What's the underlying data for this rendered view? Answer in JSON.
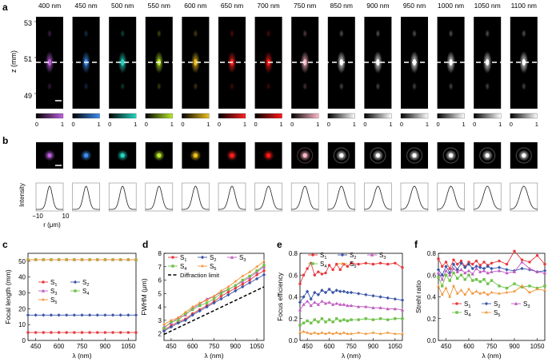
{
  "figure": {
    "panel_letters": [
      "a",
      "b",
      "c",
      "d",
      "e",
      "f"
    ],
    "wavelength_labels": [
      "400 nm",
      "450 nm",
      "500 nm",
      "550 nm",
      "600 nm",
      "650 nm",
      "700 nm",
      "750 nm",
      "850 nm",
      "900 nm",
      "950 nm",
      "1000 nm",
      "1050 nm",
      "1100 nm"
    ],
    "channel_colors": [
      "#c060e0",
      "#3d8ef0",
      "#25d6c2",
      "#b7ea2c",
      "#eec020",
      "#ff2020",
      "#ff1818",
      "#ffb8c8",
      "#ffffff",
      "#ffffff",
      "#ffffff",
      "#ffffff",
      "#ffffff",
      "#ffffff"
    ],
    "panel_a": {
      "z_axis_label": "z (mm)",
      "z_ticks": [
        "53",
        "51",
        "49"
      ],
      "colorbar_tick_min": "0",
      "colorbar_tick_max": "1"
    },
    "panel_b": {
      "intensity_label": "Intensity",
      "r_axis_label": "r (μm)",
      "r_ticks": [
        "−10",
        "10"
      ]
    }
  },
  "chart_data": [
    {
      "panel": "c",
      "type": "line",
      "title": "",
      "xlabel": "λ (nm)",
      "ylabel": "Focal length (mm)",
      "xlim": [
        400,
        1100
      ],
      "ylim": [
        0,
        55
      ],
      "x_ticks": [
        450,
        600,
        750,
        900,
        1050
      ],
      "y_ticks": [
        0,
        10,
        20,
        30,
        40,
        50
      ],
      "x": [
        400,
        450,
        500,
        550,
        600,
        650,
        700,
        750,
        800,
        850,
        900,
        950,
        1000,
        1050,
        1100
      ],
      "legend": {
        "location": "center-left",
        "columns": 2
      },
      "series": [
        {
          "name": "S1",
          "sub": "1",
          "color": "#e8383c",
          "values": [
            5,
            5,
            5,
            5,
            5,
            5,
            5,
            5,
            5,
            5,
            5,
            5,
            5,
            5,
            5
          ]
        },
        {
          "name": "S2",
          "sub": "2",
          "color": "#3b56a8",
          "values": [
            16,
            16,
            16,
            16,
            16,
            16,
            16,
            16,
            16,
            16,
            16,
            16,
            16,
            16,
            16
          ]
        },
        {
          "name": "S3",
          "sub": "3",
          "color": "#c05cc0",
          "values": [
            51,
            51,
            51,
            51,
            51,
            51,
            51,
            51,
            51,
            51,
            51,
            51,
            51,
            51,
            51
          ]
        },
        {
          "name": "S4",
          "sub": "4",
          "color": "#6fc24a",
          "values": [
            51,
            51,
            51,
            51,
            51,
            51,
            51,
            51,
            51,
            51,
            51,
            51,
            51,
            51,
            51
          ]
        },
        {
          "name": "S5",
          "sub": "5",
          "color": "#f0902e",
          "values": [
            51,
            51,
            51,
            51,
            51,
            51,
            51,
            51,
            51,
            51,
            51,
            51,
            51,
            51,
            51
          ]
        }
      ]
    },
    {
      "panel": "d",
      "type": "line",
      "title": "",
      "xlabel": "λ (nm)",
      "ylabel": "FWHM (μm)",
      "xlim": [
        400,
        1100
      ],
      "ylim": [
        1.5,
        8
      ],
      "x_ticks": [
        450,
        600,
        750,
        900,
        1050
      ],
      "y_ticks": [
        2,
        3,
        4,
        5,
        6,
        7,
        8
      ],
      "x": [
        400,
        450,
        500,
        550,
        600,
        650,
        700,
        750,
        800,
        850,
        900,
        950,
        1000,
        1050,
        1100
      ],
      "legend": {
        "location": "top-left",
        "columns": 3
      },
      "series": [
        {
          "name": "S1",
          "sub": "1",
          "color": "#e8383c",
          "values": [
            2.3,
            2.6,
            2.9,
            3.1,
            3.5,
            3.8,
            4.1,
            4.4,
            4.8,
            5.1,
            5.4,
            5.7,
            6.0,
            6.4,
            6.7
          ]
        },
        {
          "name": "S2",
          "sub": "2",
          "color": "#3b56a8",
          "values": [
            2.2,
            2.5,
            2.8,
            3.0,
            3.4,
            3.7,
            4.0,
            4.3,
            4.6,
            4.9,
            5.2,
            5.5,
            5.8,
            6.1,
            6.4
          ]
        },
        {
          "name": "S3",
          "sub": "3",
          "color": "#c05cc0",
          "values": [
            2.5,
            2.8,
            3.2,
            3.4,
            3.9,
            4.2,
            4.6,
            4.8,
            5.1,
            5.3,
            5.6,
            5.9,
            6.2,
            6.6,
            7.0
          ]
        },
        {
          "name": "S4",
          "sub": "4",
          "color": "#6fc24a",
          "values": [
            2.4,
            2.9,
            3.0,
            3.5,
            3.8,
            4.1,
            4.3,
            4.6,
            5.0,
            5.3,
            5.6,
            6.0,
            6.3,
            6.7,
            7.1
          ]
        },
        {
          "name": "S5",
          "sub": "5",
          "color": "#f0902e",
          "values": [
            2.7,
            3.0,
            3.2,
            3.6,
            4.0,
            4.3,
            4.5,
            4.8,
            5.2,
            5.5,
            5.9,
            6.3,
            6.6,
            7.0,
            7.4
          ]
        }
      ],
      "reference_line": {
        "name": "Diffraction limit",
        "x": [
          400,
          1100
        ],
        "values": [
          1.95,
          5.5
        ]
      }
    },
    {
      "panel": "e",
      "type": "line",
      "title": "",
      "xlabel": "λ (nm)",
      "ylabel": "Focus efficiency",
      "xlim": [
        400,
        1100
      ],
      "ylim": [
        0,
        0.8
      ],
      "x_ticks": [
        450,
        600,
        750,
        900,
        1050
      ],
      "y_ticks": [
        0.0,
        0.2,
        0.4,
        0.6,
        0.8
      ],
      "x": [
        400,
        425,
        450,
        475,
        500,
        525,
        550,
        575,
        600,
        625,
        650,
        675,
        700,
        725,
        750,
        800,
        850,
        900,
        950,
        1000,
        1050,
        1100
      ],
      "legend": {
        "location": "top",
        "columns": 3
      },
      "series": [
        {
          "name": "S1",
          "sub": "1",
          "color": "#e8383c",
          "values": [
            0.52,
            0.6,
            0.66,
            0.71,
            0.6,
            0.63,
            0.61,
            0.62,
            0.69,
            0.65,
            0.7,
            0.65,
            0.7,
            0.68,
            0.71,
            0.7,
            0.71,
            0.7,
            0.71,
            0.7,
            0.71,
            0.67
          ]
        },
        {
          "name": "S2",
          "sub": "2",
          "color": "#3b56a8",
          "values": [
            0.35,
            0.4,
            0.45,
            0.38,
            0.44,
            0.42,
            0.46,
            0.44,
            0.47,
            0.44,
            0.46,
            0.45,
            0.45,
            0.44,
            0.44,
            0.43,
            0.42,
            0.41,
            0.4,
            0.39,
            0.38,
            0.37
          ]
        },
        {
          "name": "S3",
          "sub": "3",
          "color": "#c05cc0",
          "values": [
            0.28,
            0.33,
            0.36,
            0.32,
            0.35,
            0.33,
            0.36,
            0.34,
            0.35,
            0.33,
            0.34,
            0.33,
            0.33,
            0.32,
            0.32,
            0.31,
            0.31,
            0.3,
            0.3,
            0.29,
            0.29,
            0.28
          ]
        },
        {
          "name": "S4",
          "sub": "4",
          "color": "#6fc24a",
          "values": [
            0.14,
            0.16,
            0.18,
            0.16,
            0.19,
            0.17,
            0.2,
            0.17,
            0.19,
            0.17,
            0.2,
            0.18,
            0.19,
            0.18,
            0.19,
            0.19,
            0.2,
            0.19,
            0.2,
            0.19,
            0.2,
            0.2
          ]
        },
        {
          "name": "S5",
          "sub": "5",
          "color": "#f0902e",
          "values": [
            0.07,
            0.08,
            0.07,
            0.06,
            0.07,
            0.06,
            0.07,
            0.06,
            0.07,
            0.06,
            0.07,
            0.06,
            0.07,
            0.06,
            0.06,
            0.07,
            0.06,
            0.07,
            0.06,
            0.07,
            0.06,
            0.06
          ]
        }
      ]
    },
    {
      "panel": "f",
      "type": "line",
      "title": "",
      "xlabel": "λ (nm)",
      "ylabel": "Strehl ratio",
      "xlim": [
        400,
        1100
      ],
      "ylim": [
        0,
        0.8
      ],
      "x_ticks": [
        450,
        600,
        750,
        900,
        1050
      ],
      "y_ticks": [
        0.0,
        0.2,
        0.4,
        0.6,
        0.8
      ],
      "x": [
        400,
        425,
        450,
        475,
        500,
        525,
        550,
        575,
        600,
        625,
        650,
        675,
        700,
        725,
        750,
        800,
        850,
        900,
        950,
        1000,
        1050,
        1100
      ],
      "legend": {
        "location": "bottom",
        "columns": 3
      },
      "series": [
        {
          "name": "S1",
          "sub": "1",
          "color": "#e8383c",
          "values": [
            0.75,
            0.68,
            0.72,
            0.66,
            0.74,
            0.7,
            0.73,
            0.68,
            0.72,
            0.7,
            0.73,
            0.69,
            0.72,
            0.69,
            0.71,
            0.73,
            0.7,
            0.82,
            0.74,
            0.72,
            0.78,
            0.7
          ]
        },
        {
          "name": "S2",
          "sub": "2",
          "color": "#3b56a8",
          "values": [
            0.65,
            0.6,
            0.68,
            0.62,
            0.7,
            0.65,
            0.71,
            0.67,
            0.7,
            0.66,
            0.68,
            0.67,
            0.66,
            0.68,
            0.66,
            0.67,
            0.65,
            0.64,
            0.66,
            0.65,
            0.63,
            0.64
          ]
        },
        {
          "name": "S3",
          "sub": "3",
          "color": "#c05cc0",
          "values": [
            0.62,
            0.56,
            0.64,
            0.6,
            0.66,
            0.63,
            0.65,
            0.62,
            0.64,
            0.61,
            0.66,
            0.63,
            0.64,
            0.62,
            0.63,
            0.64,
            0.62,
            0.63,
            0.72,
            0.66,
            0.63,
            0.62
          ]
        },
        {
          "name": "S4",
          "sub": "4",
          "color": "#6fc24a",
          "values": [
            0.58,
            0.5,
            0.6,
            0.55,
            0.62,
            0.57,
            0.6,
            0.56,
            0.6,
            0.55,
            0.56,
            0.54,
            0.56,
            0.52,
            0.55,
            0.5,
            0.48,
            0.52,
            0.49,
            0.5,
            0.48,
            0.5
          ]
        },
        {
          "name": "S5",
          "sub": "5",
          "color": "#f0902e",
          "values": [
            0.5,
            0.42,
            0.48,
            0.4,
            0.5,
            0.43,
            0.46,
            0.42,
            0.47,
            0.43,
            0.45,
            0.43,
            0.44,
            0.42,
            0.44,
            0.43,
            0.44,
            0.45,
            0.5,
            0.44,
            0.47,
            0.46
          ]
        }
      ]
    }
  ]
}
